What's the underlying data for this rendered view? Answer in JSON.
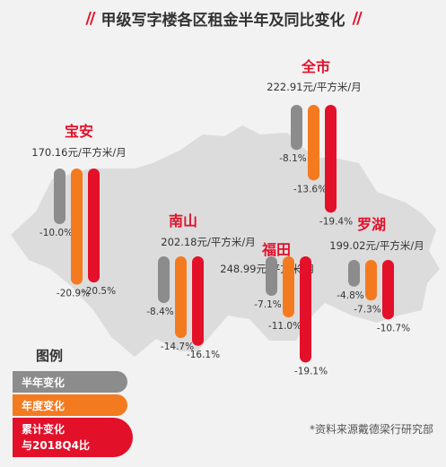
{
  "header": {
    "title": "甲级写字楼各区租金半年及同比变化",
    "slashes": "//"
  },
  "colors": {
    "half_year": "#8c8c8c",
    "annual": "#f47a20",
    "cumulative": "#e3102a",
    "map": "#d6d6d6",
    "name": "#e3102a"
  },
  "legend": {
    "title": "图例",
    "items": [
      {
        "label": "半年变化",
        "color": "#8c8c8c"
      },
      {
        "label": "年度变化",
        "color": "#f47a20"
      },
      {
        "label": "累计变化",
        "label2": "与2018Q4比",
        "color": "#e3102a"
      }
    ]
  },
  "footnote": "*资料来源戴德梁行研究部",
  "chart_data": {
    "type": "bar",
    "title": "甲级写字楼各区租金半年及同比变化",
    "series": [
      {
        "name": "半年变化",
        "values": [
          -10.0,
          -8.4,
          -7.1,
          -4.8,
          -8.1
        ]
      },
      {
        "name": "年度变化",
        "values": [
          -20.9,
          -14.7,
          -11.0,
          -7.3,
          -13.6
        ]
      },
      {
        "name": "累计变化与2018Q4比",
        "values": [
          -20.5,
          -16.1,
          -19.1,
          -10.7,
          -19.4
        ]
      }
    ],
    "districts": [
      {
        "name": "宝安",
        "rent": "170.16元/平方米/月",
        "labels": [
          "-10.0%",
          "-20.9%",
          "-20.5%"
        ]
      },
      {
        "name": "南山",
        "rent": "202.18元/平方米/月",
        "labels": [
          "-8.4%",
          "-14.7%",
          "-16.1%"
        ]
      },
      {
        "name": "福田",
        "rent": "248.99元/平方米/月",
        "labels": [
          "-7.1%",
          "-11.0%",
          "-19.1%"
        ]
      },
      {
        "name": "罗湖",
        "rent": "199.02元/平方米/月",
        "labels": [
          "-4.8%",
          "-7.3%",
          "-10.7%"
        ]
      },
      {
        "name": "全市",
        "rent": "222.91元/平方米/月",
        "labels": [
          "-8.1%",
          "-13.6%",
          "-19.4%"
        ]
      }
    ]
  }
}
